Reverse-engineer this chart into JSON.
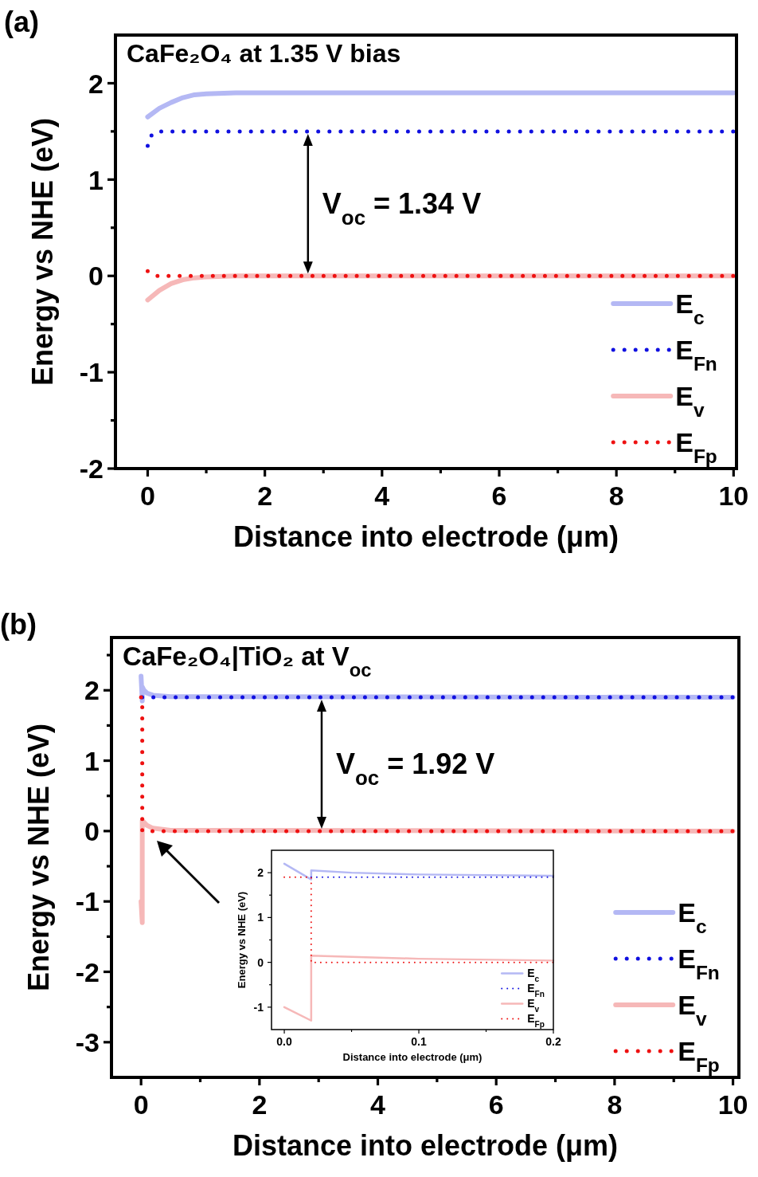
{
  "chart_data": [
    {
      "type": "line",
      "title": "CaFe₂O₄ at 1.35 V bias",
      "xlabel": "Distance into electrode (μm)",
      "ylabel": "Energy vs NHE (eV)",
      "annotations": [
        "(a)",
        "V$_{oc}$ = 1.34 V"
      ],
      "xlim": [
        -0.55,
        10.05
      ],
      "ylim": [
        -2,
        2.5
      ],
      "xticks": [
        0,
        {
          "value": 1,
          "label": null
        },
        2,
        {
          "value": 3,
          "label": null
        },
        4,
        {
          "value": 5,
          "label": null
        },
        6,
        {
          "value": 7,
          "label": null
        },
        8,
        {
          "value": 9,
          "label": null
        },
        10
      ],
      "yticks": [
        -2,
        {
          "value": -1.5,
          "label": null
        },
        -1,
        {
          "value": -0.5,
          "label": null
        },
        0,
        {
          "value": 0.5,
          "label": null
        },
        1,
        {
          "value": 1.5,
          "label": null
        },
        2
      ],
      "legend": "bottom right",
      "series": [
        {
          "name": "E$_{c}$",
          "color": "#b4b8f4",
          "line_style": "solid",
          "x": [
            0,
            0.2,
            0.4,
            0.6,
            0.8,
            1.0,
            1.5,
            10
          ],
          "values": [
            1.65,
            1.74,
            1.8,
            1.85,
            1.88,
            1.89,
            1.9,
            1.9
          ]
        },
        {
          "name": "E$_{Fn}$",
          "color": "#1010e0",
          "line_style": "dotted",
          "x": [
            0,
            0.05,
            0.15,
            10
          ],
          "values": [
            1.35,
            1.45,
            1.5,
            1.5
          ]
        },
        {
          "name": "E$_{v}$",
          "color": "#f6b8b8",
          "line_style": "solid",
          "x": [
            0,
            0.2,
            0.4,
            0.6,
            0.8,
            1.0,
            1.5,
            10
          ],
          "values": [
            -0.25,
            -0.15,
            -0.08,
            -0.04,
            -0.02,
            -0.01,
            0,
            0
          ]
        },
        {
          "name": "E$_{Fp}$",
          "color": "#ee1111",
          "line_style": "dotted",
          "x": [
            0,
            0.15,
            10
          ],
          "values": [
            0.05,
            0,
            0
          ]
        }
      ]
    },
    {
      "type": "line",
      "title": "CaFe₂O₄|TiO₂ at V$_{oc}$",
      "xlabel": "Distance into electrode (μm)",
      "ylabel": "Energy vs NHE (eV)",
      "annotations": [
        "(b)",
        "V$_{oc}$ = 1.92 V"
      ],
      "xlim": [
        -0.5,
        10.1
      ],
      "ylim": [
        -3.5,
        2.75
      ],
      "xticks": [
        0,
        {
          "value": 1,
          "label": null
        },
        2,
        {
          "value": 3,
          "label": null
        },
        4,
        {
          "value": 5,
          "label": null
        },
        6,
        {
          "value": 7,
          "label": null
        },
        8,
        {
          "value": 9,
          "label": null
        },
        10
      ],
      "yticks": [
        -3,
        {
          "value": -2.5,
          "label": null
        },
        -2,
        {
          "value": -1.5,
          "label": null
        },
        -1,
        {
          "value": -0.5,
          "label": null
        },
        0,
        {
          "value": 0.5,
          "label": null
        },
        1,
        {
          "value": 1.5,
          "label": null
        },
        2,
        {
          "value": 2.5,
          "label": null
        }
      ],
      "legend": "bottom right",
      "series": [
        {
          "name": "E$_{c}$",
          "color": "#b4b8f4",
          "line_style": "solid",
          "x": [
            0,
            0.02,
            0.02,
            0.05,
            0.1,
            0.2,
            0.5,
            10
          ],
          "values": [
            2.2,
            1.85,
            2.05,
            2.0,
            1.96,
            1.93,
            1.91,
            1.9
          ]
        },
        {
          "name": "E$_{Fn}$",
          "color": "#1010e0",
          "line_style": "dotted",
          "x": [
            0.02,
            10
          ],
          "values": [
            1.9,
            1.9
          ]
        },
        {
          "name": "E$_{v}$",
          "color": "#f6b8b8",
          "line_style": "solid",
          "x": [
            0,
            0.02,
            0.02,
            0.1,
            0.2,
            0.5,
            10
          ],
          "values": [
            -1,
            -1.3,
            0.15,
            0.08,
            0.04,
            0.01,
            0
          ]
        },
        {
          "name": "E$_{Fp}$",
          "color": "#ee1111",
          "line_style": "dotted",
          "x": [
            0,
            0.02,
            0.02,
            10
          ],
          "values": [
            1.9,
            1.9,
            0,
            0
          ]
        }
      ]
    },
    {
      "type": "line",
      "xlabel": "Distance into electrode (μm)",
      "ylabel": "Energy vs NHE (eV)",
      "xlim": [
        -0.0095,
        0.2
      ],
      "ylim": [
        -1.5,
        2.5
      ],
      "xticks": [
        {
          "value": 0,
          "label": "0.0"
        },
        {
          "value": 0.05,
          "label": null
        },
        0.1,
        {
          "value": 0.15,
          "label": null
        },
        0.2
      ],
      "yticks": [
        -1,
        {
          "value": -0.5,
          "label": null
        },
        0,
        {
          "value": 0.5,
          "label": null
        },
        1,
        {
          "value": 1.5,
          "label": null
        },
        2
      ],
      "legend": "bottom right",
      "series": [
        {
          "name": "E$_{c}$",
          "color": "#b4b8f4",
          "line_style": "solid",
          "x": [
            0,
            0.02,
            0.02,
            0.05,
            0.1,
            0.2
          ],
          "values": [
            2.2,
            1.85,
            2.05,
            2.0,
            1.96,
            1.93
          ]
        },
        {
          "name": "E$_{Fn}$",
          "color": "#1010e0",
          "line_style": "dotted",
          "x": [
            0.02,
            0.2
          ],
          "values": [
            1.9,
            1.9
          ]
        },
        {
          "name": "E$_{v}$",
          "color": "#f6b8b8",
          "line_style": "solid",
          "x": [
            0,
            0.02,
            0.02,
            0.1,
            0.2
          ],
          "values": [
            -1,
            -1.3,
            0.15,
            0.08,
            0.04
          ]
        },
        {
          "name": "E$_{Fp}$",
          "color": "#ee1111",
          "line_style": "dotted",
          "x": [
            0,
            0.02,
            0.02,
            0.2
          ],
          "values": [
            1.9,
            1.9,
            0,
            0
          ]
        }
      ]
    }
  ]
}
